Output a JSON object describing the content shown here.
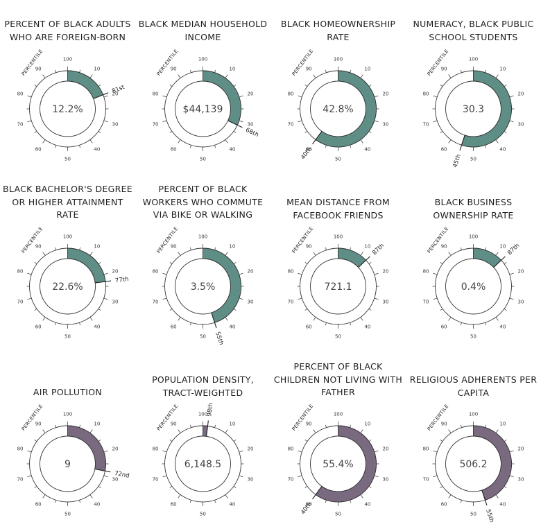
{
  "axis_label": "PERCENTILE",
  "ticks": [
    "100",
    "10",
    "20",
    "30",
    "40",
    "50",
    "60",
    "70",
    "80",
    "90"
  ],
  "chart_data": [
    {
      "type": "donut",
      "title": "PERCENT OF BLACK ADULTS WHO ARE FOREIGN-BORN",
      "value": "12.2%",
      "percentile": 81,
      "rank_label": "81st",
      "color": "#5f8e87"
    },
    {
      "type": "donut",
      "title": "BLACK MEDIAN HOUSEHOLD INCOME",
      "value": "$44,139",
      "percentile": 68,
      "rank_label": "68th",
      "color": "#5f8e87"
    },
    {
      "type": "donut",
      "title": "BLACK HOMEOWNERSHIP RATE",
      "value": "42.8%",
      "percentile": 40,
      "rank_label": "40th",
      "color": "#5f8e87"
    },
    {
      "type": "donut",
      "title": "NUMERACY, BLACK PUBLIC SCHOOL STUDENTS",
      "value": "30.3",
      "percentile": 45,
      "rank_label": "45th",
      "color": "#5f8e87"
    },
    {
      "type": "donut",
      "title": "BLACK BACHELOR'S DEGREE OR HIGHER ATTAINMENT RATE",
      "value": "22.6%",
      "percentile": 77,
      "rank_label": "77th",
      "color": "#5f8e87"
    },
    {
      "type": "donut",
      "title": "PERCENT OF BLACK WORKERS WHO COMMUTE VIA BIKE OR WALKING",
      "value": "3.5%",
      "percentile": 55,
      "rank_label": "55th",
      "color": "#5f8e87"
    },
    {
      "type": "donut",
      "title": "MEAN DISTANCE FROM FACEBOOK FRIENDS",
      "value": "721.1",
      "percentile": 87,
      "rank_label": "87th",
      "color": "#5f8e87"
    },
    {
      "type": "donut",
      "title": "BLACK BUSINESS OWNERSHIP RATE",
      "value": "0.4%",
      "percentile": 87,
      "rank_label": "87th",
      "color": "#5f8e87"
    },
    {
      "type": "donut",
      "title": "AIR POLLUTION",
      "value": "9",
      "percentile": 72,
      "rank_label": "72nd",
      "color": "#7a6a80"
    },
    {
      "type": "donut",
      "title": "POPULATION DENSITY, TRACT-WEIGHTED",
      "value": "6,148.5",
      "percentile": 98,
      "rank_label": "98th",
      "color": "#7a6a80"
    },
    {
      "type": "donut",
      "title": "PERCENT OF BLACK CHILDREN NOT LIVING WITH FATHER",
      "value": "55.4%",
      "percentile": 40,
      "rank_label": "40th",
      "color": "#7a6a80"
    },
    {
      "type": "donut",
      "title": "RELIGIOUS ADHERENTS PER CAPITA",
      "value": "506.2",
      "percentile": 55,
      "rank_label": "55th",
      "color": "#7a6a80"
    }
  ]
}
